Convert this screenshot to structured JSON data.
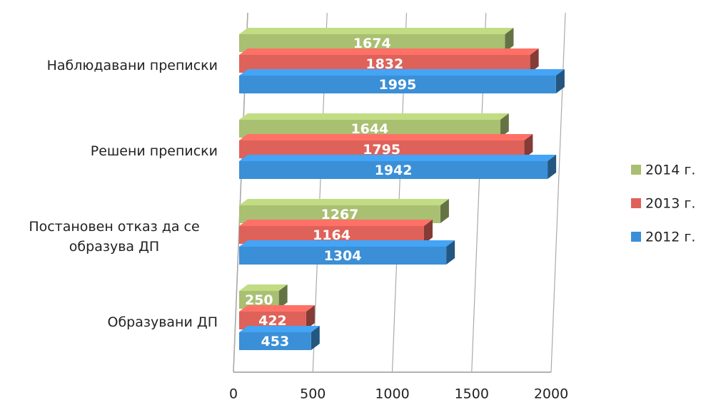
{
  "chart_data": {
    "type": "bar",
    "orientation": "horizontal",
    "categories": [
      "Наблюдавани преписки",
      "Решени преписки",
      "Постановен отказ да се образува ДП",
      "Образувани ДП"
    ],
    "series": [
      {
        "name": "2014 г.",
        "color": "#a9bf72",
        "values": [
          1674,
          1644,
          1267,
          250
        ]
      },
      {
        "name": "2013 г.",
        "color": "#de625a",
        "values": [
          1832,
          1795,
          1164,
          422
        ]
      },
      {
        "name": "2012 г.",
        "color": "#3b8fd6",
        "values": [
          1995,
          1942,
          1304,
          453
        ]
      }
    ],
    "xlim": [
      0,
      2000
    ],
    "xticks": [
      0,
      500,
      1000,
      1500,
      2000
    ],
    "grid": true,
    "legend": "right"
  }
}
